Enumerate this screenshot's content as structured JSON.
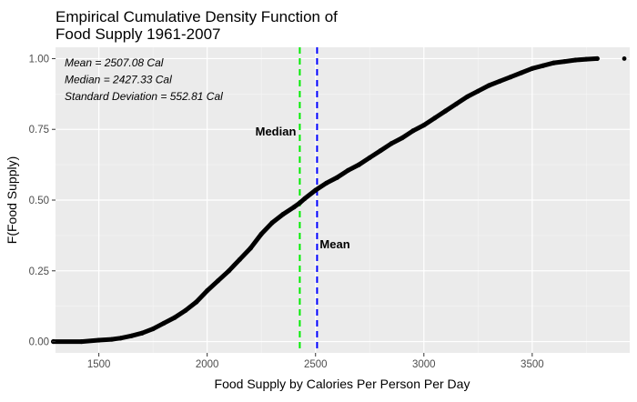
{
  "chart_data": {
    "type": "line",
    "title_lines": [
      "Empirical Cumulative Density Function of",
      "Food Supply 1961-2007"
    ],
    "xlabel": "Food Supply by Calories Per Person Per Day",
    "ylabel": "F(Food Supply)",
    "xlim": [
      1300,
      3950
    ],
    "ylim": [
      -0.04,
      1.04
    ],
    "x_ticks": [
      1500,
      2000,
      2500,
      3000,
      3500
    ],
    "y_ticks": [
      0.0,
      0.25,
      0.5,
      0.75,
      1.0
    ],
    "y_tick_labels": [
      "0.00",
      "0.25",
      "0.50",
      "0.75",
      "1.00"
    ],
    "grid": true,
    "legend": "none",
    "stats_text": [
      "Mean = 2507.08 Cal",
      "Median = 2427.33 Cal",
      "Standard Deviation = 552.81 Cal"
    ],
    "vlines": [
      {
        "label": "Median",
        "x": 2427.33,
        "color": "#00ee00",
        "style": "dashed",
        "label_y": 0.745
      },
      {
        "label": "Mean",
        "x": 2507.08,
        "color": "#0000ff",
        "style": "dashed",
        "label_y": 0.345
      }
    ],
    "series": [
      {
        "color": "#000000",
        "x": [
          1290,
          1420,
          1500,
          1560,
          1600,
          1650,
          1700,
          1750,
          1800,
          1850,
          1900,
          1950,
          2000,
          2050,
          2100,
          2150,
          2200,
          2250,
          2300,
          2350,
          2400,
          2427,
          2450,
          2500,
          2550,
          2600,
          2650,
          2700,
          2750,
          2800,
          2850,
          2900,
          2950,
          3000,
          3050,
          3100,
          3150,
          3200,
          3250,
          3300,
          3350,
          3400,
          3450,
          3500,
          3550,
          3600,
          3650,
          3700,
          3750,
          3800
        ],
        "y": [
          0.0,
          0.0,
          0.005,
          0.008,
          0.012,
          0.02,
          0.03,
          0.045,
          0.065,
          0.085,
          0.11,
          0.14,
          0.18,
          0.215,
          0.25,
          0.29,
          0.33,
          0.38,
          0.42,
          0.45,
          0.475,
          0.49,
          0.505,
          0.535,
          0.56,
          0.58,
          0.605,
          0.625,
          0.65,
          0.675,
          0.7,
          0.72,
          0.745,
          0.765,
          0.79,
          0.815,
          0.84,
          0.865,
          0.885,
          0.905,
          0.92,
          0.935,
          0.95,
          0.965,
          0.975,
          0.985,
          0.99,
          0.995,
          0.998,
          1.0
        ]
      }
    ],
    "outlier_points": [
      {
        "x": 1290,
        "y": 0.0
      },
      {
        "x": 3925,
        "y": 1.0
      }
    ]
  }
}
